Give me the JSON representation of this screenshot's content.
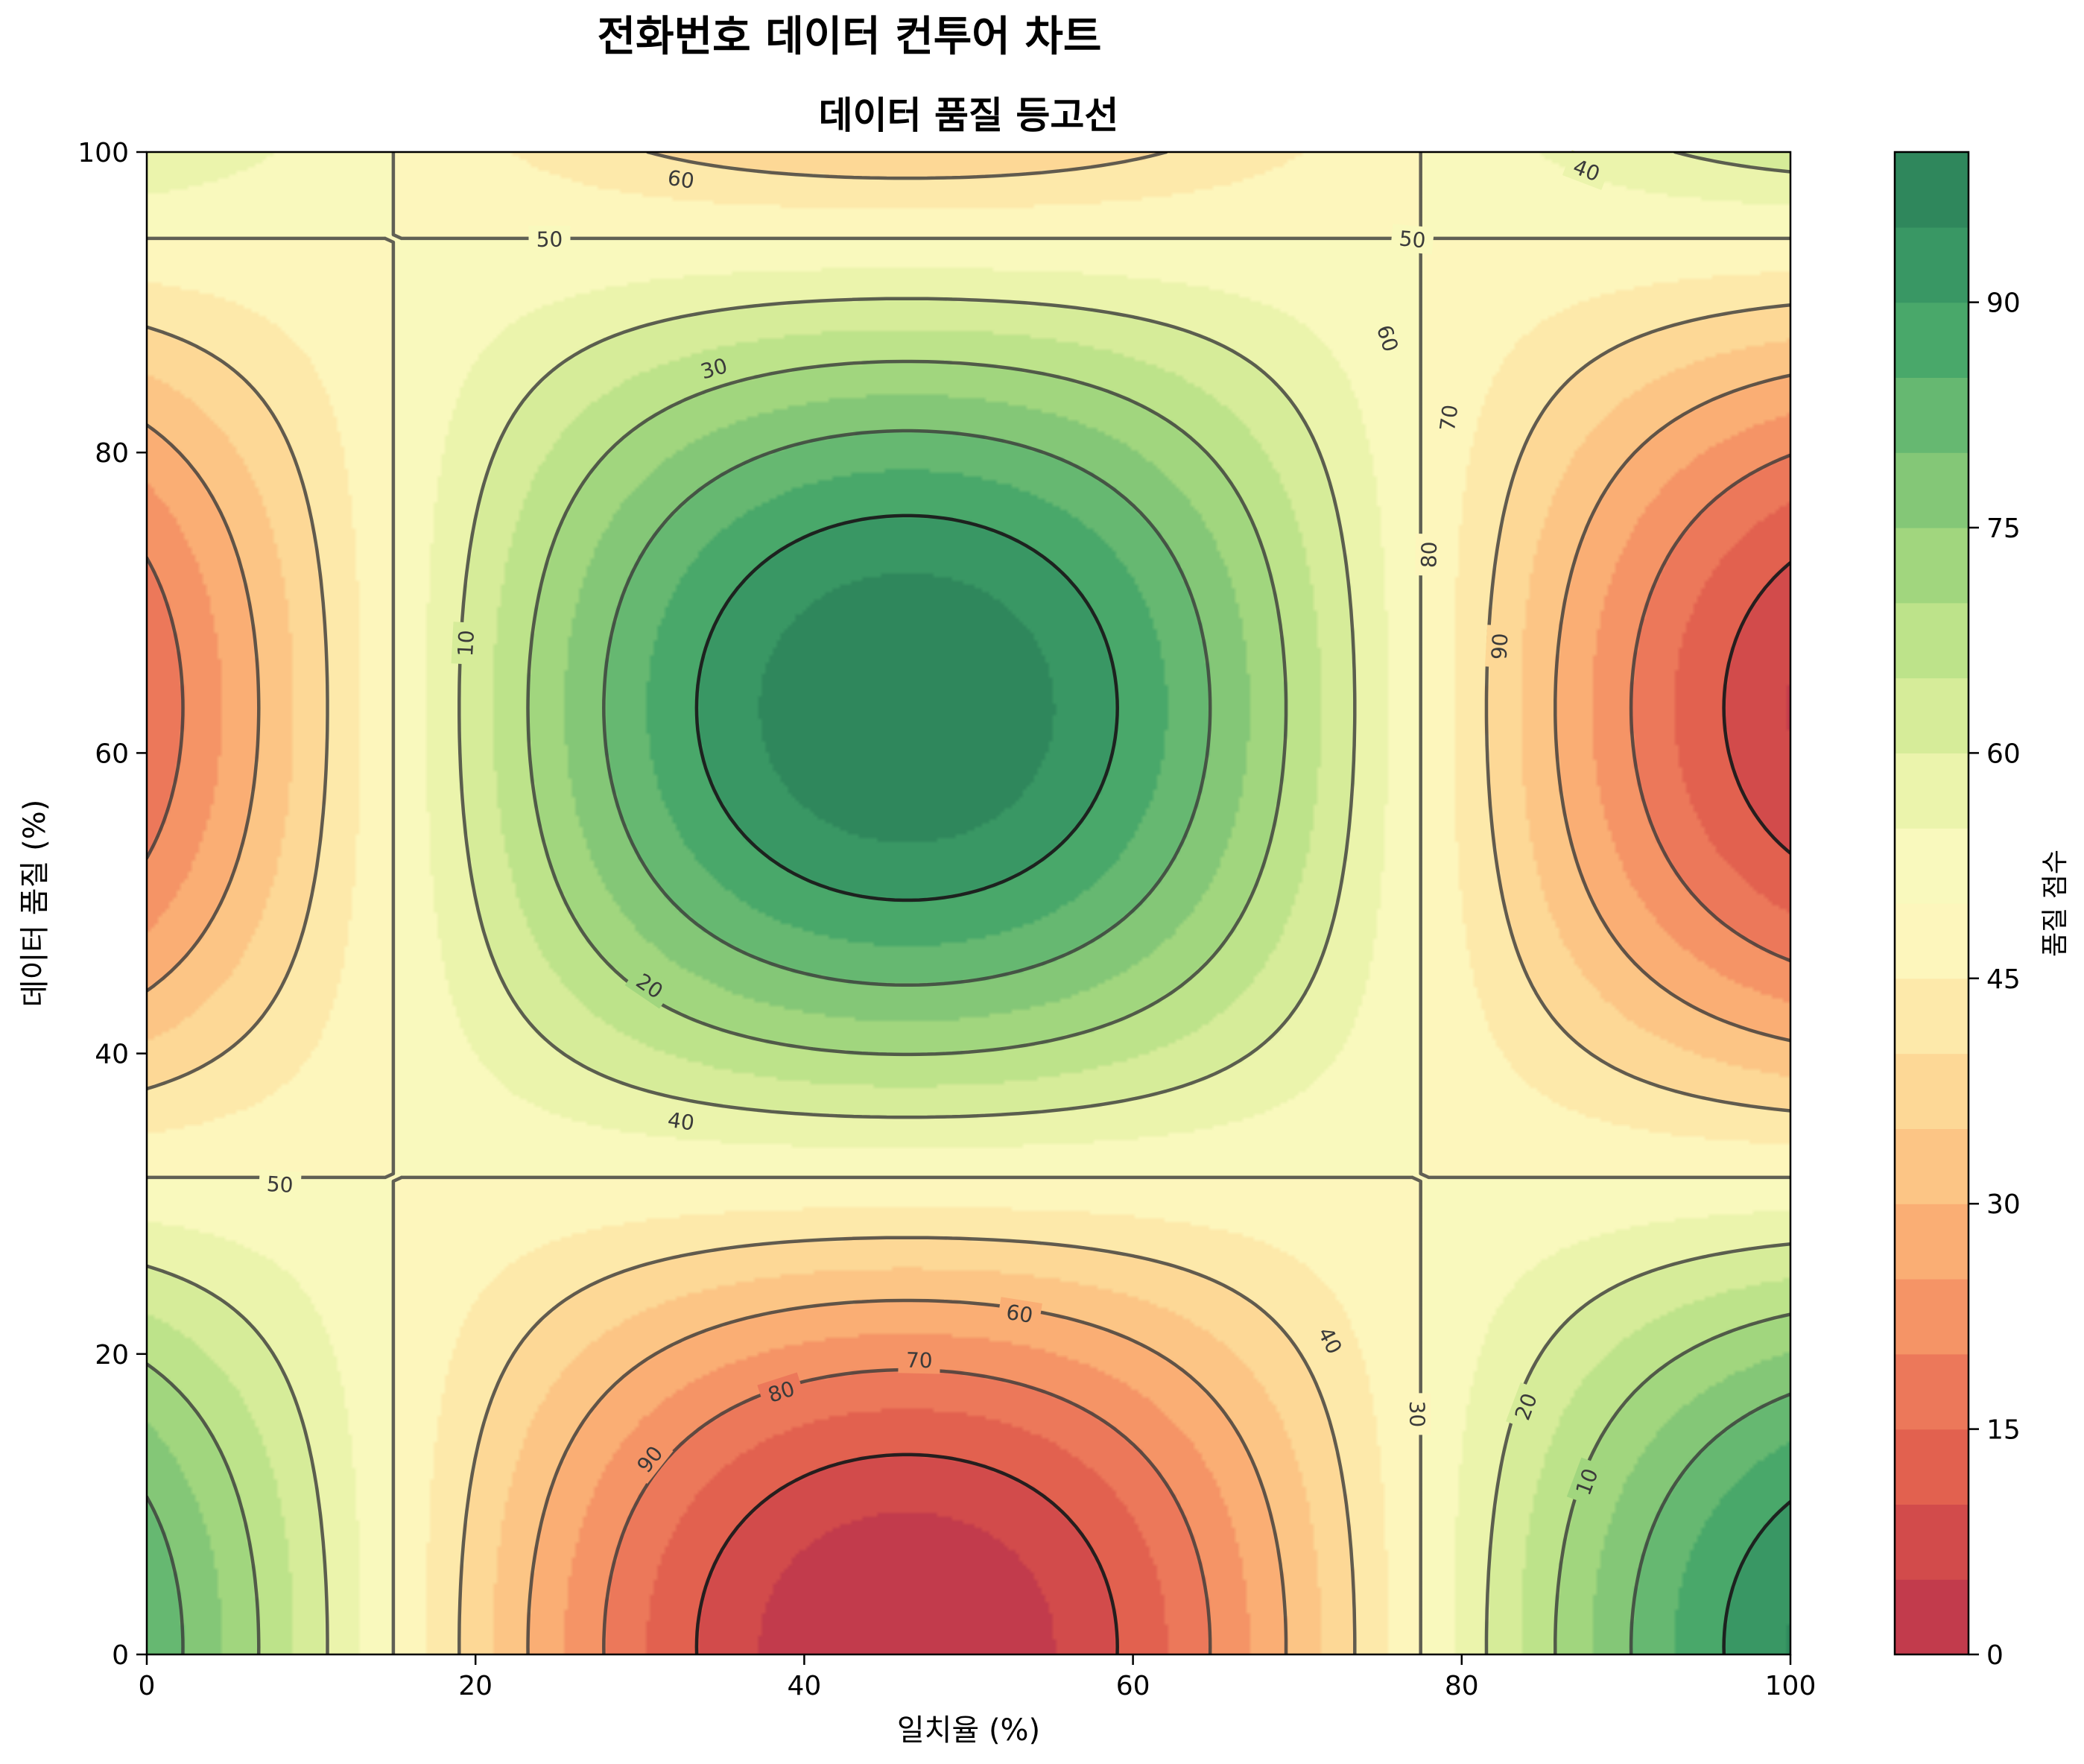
{
  "figure": {
    "suptitle": "전화번호 데이터 컨투어 차트"
  },
  "chart_data": {
    "type": "contour",
    "title": "데이터 품질 등고선",
    "xlabel": "일치율 (%)",
    "ylabel": "데이터 품질 (%)",
    "xlim": [
      0,
      100
    ],
    "ylim": [
      0,
      100
    ],
    "xticks": [
      0,
      20,
      40,
      60,
      80,
      100
    ],
    "yticks": [
      0,
      20,
      40,
      60,
      80,
      100
    ],
    "colormap": "RdYlGn",
    "field": {
      "formula": "50 + 50*sin(2*pi*(x-15)/125)*cos(2*pi*(y-63)/125)",
      "description": "saddle-like field: minima near (32,63) and (94,0); maxima near (32,0) and (94,63)"
    },
    "filled_levels": [
      0,
      5,
      10,
      15,
      20,
      25,
      30,
      35,
      40,
      45,
      50,
      55,
      60,
      65,
      70,
      75,
      80,
      85,
      90,
      95,
      100
    ],
    "line_levels": [
      10,
      20,
      30,
      40,
      50,
      60,
      70,
      80,
      90
    ],
    "contour_labels": [
      {
        "level": "60",
        "x": 32.5,
        "y": 98.2
      },
      {
        "level": "40",
        "x": 87.6,
        "y": 98.8
      },
      {
        "level": "50",
        "x": 24.5,
        "y": 94.2
      },
      {
        "level": "50",
        "x": 77.0,
        "y": 94.2
      },
      {
        "level": "30",
        "x": 34.5,
        "y": 85.6
      },
      {
        "level": "60",
        "x": 75.5,
        "y": 87.6
      },
      {
        "level": "70",
        "x": 79.2,
        "y": 82.3
      },
      {
        "level": "10",
        "x": 19.4,
        "y": 67.3
      },
      {
        "level": "80",
        "x": 78.0,
        "y": 73.2
      },
      {
        "level": "90",
        "x": 82.3,
        "y": 67.1
      },
      {
        "level": "20",
        "x": 30.6,
        "y": 44.5
      },
      {
        "level": "40",
        "x": 32.5,
        "y": 35.5
      },
      {
        "level": "50",
        "x": 8.1,
        "y": 31.3
      },
      {
        "level": "60",
        "x": 53.1,
        "y": 22.7
      },
      {
        "level": "40",
        "x": 72.0,
        "y": 20.9
      },
      {
        "level": "70",
        "x": 47.0,
        "y": 19.6
      },
      {
        "level": "30",
        "x": 77.3,
        "y": 16.0
      },
      {
        "level": "80",
        "x": 38.6,
        "y": 17.5
      },
      {
        "level": "20",
        "x": 83.9,
        "y": 16.5
      },
      {
        "level": "90",
        "x": 30.6,
        "y": 13.0
      },
      {
        "level": "10",
        "x": 87.6,
        "y": 11.5
      }
    ],
    "colorbar": {
      "label": "품질 점수",
      "ticks": [
        "0",
        "15",
        "30",
        "45",
        "60",
        "75",
        "90"
      ],
      "colors": [
        "#c23b4c",
        "#d24b4b",
        "#e2614f",
        "#ec785a",
        "#f59466",
        "#faae74",
        "#fcc585",
        "#fdd896",
        "#fde9aa",
        "#fdf6bc",
        "#f9f9bd",
        "#ebf4ac",
        "#d6ec99",
        "#bde38a",
        "#a1d67e",
        "#84c777",
        "#66b871",
        "#49a86a",
        "#399764",
        "#2f875c"
      ]
    }
  }
}
